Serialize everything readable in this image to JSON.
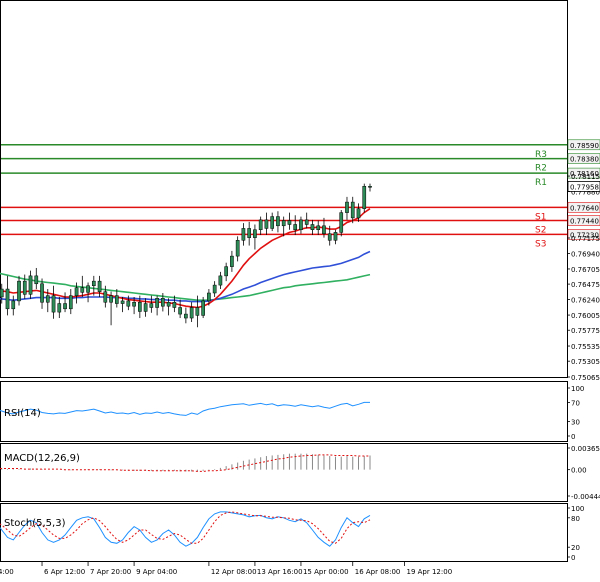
{
  "colors": {
    "up": "#2e8b57",
    "down": "#2e8b57",
    "support": "#e01010",
    "resistance": "#2a8a2a",
    "ma_fast": "#e01010",
    "ma_mid": "#3050d8",
    "ma_slow": "#30b060",
    "indicator": "#1e90ff",
    "signal": "#e01010",
    "histogram": "#888888",
    "price_tag": "#f2f2f2"
  },
  "chart_data": [
    {
      "type": "candlestick",
      "name": "price",
      "ylim": [
        0.75065,
        0.79816
      ],
      "y_ticks": [
        "0.78590",
        "0.78380",
        "0.78160",
        "0.78115",
        "0.77880",
        "0.77640",
        "0.77440",
        "0.77230",
        "0.77175",
        "0.76940",
        "0.76705",
        "0.76475",
        "0.76240",
        "0.76005",
        "0.75775",
        "0.75535",
        "0.75305",
        "0.75065"
      ],
      "y_tick_values": [
        0.7859,
        0.7838,
        0.7816,
        0.78115,
        0.7788,
        0.7764,
        0.7744,
        0.7723,
        0.77175,
        0.7694,
        0.76705,
        0.76475,
        0.7624,
        0.76005,
        0.75775,
        0.75535,
        0.75305,
        0.75065
      ],
      "x_ticks": [
        "4:00",
        "6 Apr 12:00",
        "7 Apr 20:00",
        "9 Apr 04:00",
        "12 Apr 08:00",
        "13 Apr 16:00",
        "15 Apr 00:00",
        "16 Apr 08:00",
        "19 Apr 12:00"
      ],
      "x_tick_index": [
        0,
        8,
        16,
        24,
        37,
        45,
        53,
        62,
        71
      ],
      "current_price": "0.77958",
      "current_price_value": 0.77958,
      "levels": [
        {
          "name": "R3",
          "value": 0.7859,
          "label": "0.78590",
          "kind": "resistance"
        },
        {
          "name": "R2",
          "value": 0.7838,
          "label": "0.78380",
          "kind": "resistance"
        },
        {
          "name": "R1",
          "value": 0.7816,
          "label": "0.78160",
          "kind": "resistance"
        },
        {
          "name": "S1",
          "value": 0.7764,
          "label": "0.77640",
          "kind": "support"
        },
        {
          "name": "S2",
          "value": 0.7744,
          "label": "0.77440",
          "kind": "support"
        },
        {
          "name": "S3",
          "value": 0.7723,
          "label": "0.77230",
          "kind": "support"
        }
      ],
      "candles": [
        [
          0.765,
          0.7656,
          0.762,
          0.7628
        ],
        [
          0.7628,
          0.7648,
          0.7618,
          0.764
        ],
        [
          0.764,
          0.766,
          0.76,
          0.761
        ],
        [
          0.761,
          0.763,
          0.76,
          0.7622
        ],
        [
          0.7622,
          0.766,
          0.7615,
          0.7652
        ],
        [
          0.7652,
          0.7662,
          0.7625,
          0.7632
        ],
        [
          0.7632,
          0.7668,
          0.7625,
          0.766
        ],
        [
          0.766,
          0.7672,
          0.764,
          0.7648
        ],
        [
          0.7648,
          0.7656,
          0.761,
          0.762
        ],
        [
          0.762,
          0.764,
          0.7605,
          0.763
        ],
        [
          0.763,
          0.7645,
          0.7595,
          0.7605
        ],
        [
          0.7605,
          0.7628,
          0.7596,
          0.7618
        ],
        [
          0.7618,
          0.7635,
          0.7605,
          0.761
        ],
        [
          0.761,
          0.764,
          0.7602,
          0.763
        ],
        [
          0.763,
          0.765,
          0.7618,
          0.7642
        ],
        [
          0.7642,
          0.766,
          0.7628,
          0.7635
        ],
        [
          0.7635,
          0.765,
          0.762,
          0.7645
        ],
        [
          0.7645,
          0.766,
          0.763,
          0.7652
        ],
        [
          0.7652,
          0.766,
          0.7628,
          0.7636
        ],
        [
          0.7636,
          0.7645,
          0.7612,
          0.762
        ],
        [
          0.762,
          0.7636,
          0.7585,
          0.763
        ],
        [
          0.763,
          0.764,
          0.7612,
          0.7618
        ],
        [
          0.7618,
          0.7628,
          0.7605,
          0.7622
        ],
        [
          0.7622,
          0.763,
          0.7608,
          0.7614
        ],
        [
          0.7614,
          0.7628,
          0.7602,
          0.762
        ],
        [
          0.762,
          0.763,
          0.7596,
          0.7606
        ],
        [
          0.7606,
          0.7626,
          0.7598,
          0.7618
        ],
        [
          0.7618,
          0.763,
          0.7604,
          0.7612
        ],
        [
          0.7612,
          0.763,
          0.76,
          0.7626
        ],
        [
          0.7626,
          0.7634,
          0.7606,
          0.7614
        ],
        [
          0.7614,
          0.7626,
          0.76,
          0.762
        ],
        [
          0.762,
          0.763,
          0.7605,
          0.7612
        ],
        [
          0.7612,
          0.7624,
          0.7596,
          0.7602
        ],
        [
          0.7602,
          0.7612,
          0.7588,
          0.7596
        ],
        [
          0.7596,
          0.762,
          0.759,
          0.7612
        ],
        [
          0.7612,
          0.763,
          0.7582,
          0.76
        ],
        [
          0.76,
          0.7628,
          0.7596,
          0.7622
        ],
        [
          0.7622,
          0.764,
          0.7615,
          0.7634
        ],
        [
          0.7634,
          0.7652,
          0.7628,
          0.7646
        ],
        [
          0.7646,
          0.7666,
          0.764,
          0.766
        ],
        [
          0.766,
          0.768,
          0.7652,
          0.7674
        ],
        [
          0.7674,
          0.7698,
          0.7666,
          0.769
        ],
        [
          0.769,
          0.772,
          0.7682,
          0.7714
        ],
        [
          0.7714,
          0.774,
          0.7706,
          0.7732
        ],
        [
          0.7732,
          0.7742,
          0.7706,
          0.7718
        ],
        [
          0.7718,
          0.7738,
          0.77,
          0.773
        ],
        [
          0.773,
          0.775,
          0.7722,
          0.7745
        ],
        [
          0.7745,
          0.7756,
          0.7722,
          0.7732
        ],
        [
          0.7732,
          0.7756,
          0.7728,
          0.775
        ],
        [
          0.775,
          0.7758,
          0.7726,
          0.7736
        ],
        [
          0.7736,
          0.775,
          0.772,
          0.7744
        ],
        [
          0.7744,
          0.7756,
          0.773,
          0.7738
        ],
        [
          0.7738,
          0.7752,
          0.7722,
          0.773
        ],
        [
          0.773,
          0.775,
          0.7724,
          0.7745
        ],
        [
          0.7745,
          0.7756,
          0.7732,
          0.7738
        ],
        [
          0.7738,
          0.7745,
          0.7722,
          0.773
        ],
        [
          0.773,
          0.7744,
          0.7722,
          0.7736
        ],
        [
          0.7736,
          0.7748,
          0.7718,
          0.7724
        ],
        [
          0.7724,
          0.7736,
          0.7706,
          0.7714
        ],
        [
          0.7714,
          0.773,
          0.7708,
          0.7726
        ],
        [
          0.7726,
          0.776,
          0.772,
          0.7756
        ],
        [
          0.7756,
          0.778,
          0.7745,
          0.7772
        ],
        [
          0.7772,
          0.778,
          0.774,
          0.7748
        ],
        [
          0.7748,
          0.777,
          0.7742,
          0.7762
        ],
        [
          0.7762,
          0.78,
          0.7756,
          0.7796
        ],
        [
          0.7796,
          0.78,
          0.7788,
          0.7796
        ]
      ],
      "ma_fast": [
        0.7638,
        0.7637,
        0.7636,
        0.7634,
        0.7635,
        0.7636,
        0.7637,
        0.7638,
        0.7636,
        0.7634,
        0.7632,
        0.763,
        0.7628,
        0.7628,
        0.7629,
        0.763,
        0.7632,
        0.7634,
        0.7634,
        0.7632,
        0.763,
        0.7628,
        0.7626,
        0.7624,
        0.7623,
        0.7622,
        0.7621,
        0.762,
        0.762,
        0.762,
        0.7619,
        0.7618,
        0.7616,
        0.7614,
        0.7613,
        0.7612,
        0.7614,
        0.7618,
        0.7624,
        0.7632,
        0.7642,
        0.7652,
        0.7664,
        0.7676,
        0.7686,
        0.7694,
        0.7702,
        0.7708,
        0.7714,
        0.7718,
        0.7722,
        0.7726,
        0.7728,
        0.7731,
        0.7733,
        0.7733,
        0.7734,
        0.7733,
        0.7731,
        0.7731,
        0.7735,
        0.7741,
        0.7744,
        0.7748,
        0.7756,
        0.7762
      ],
      "ma_mid": [
        0.7626,
        0.7625,
        0.7624,
        0.7623,
        0.7624,
        0.7625,
        0.7626,
        0.7627,
        0.7627,
        0.7627,
        0.7627,
        0.7626,
        0.7626,
        0.7626,
        0.7627,
        0.7627,
        0.7628,
        0.7628,
        0.7628,
        0.7628,
        0.7627,
        0.7627,
        0.7627,
        0.7626,
        0.7626,
        0.7625,
        0.7625,
        0.7624,
        0.7624,
        0.7624,
        0.7623,
        0.7623,
        0.7622,
        0.7622,
        0.7621,
        0.7621,
        0.7621,
        0.7622,
        0.7624,
        0.7626,
        0.7629,
        0.7632,
        0.7636,
        0.764,
        0.7643,
        0.7646,
        0.765,
        0.7653,
        0.7656,
        0.7659,
        0.7662,
        0.7664,
        0.7666,
        0.7668,
        0.767,
        0.7672,
        0.7673,
        0.7674,
        0.7675,
        0.7677,
        0.7679,
        0.7682,
        0.7685,
        0.7688,
        0.7693,
        0.7697
      ],
      "ma_slow": [
        0.7665,
        0.7663,
        0.7661,
        0.7659,
        0.7657,
        0.7655,
        0.7654,
        0.7652,
        0.7651,
        0.765,
        0.7649,
        0.7648,
        0.7647,
        0.7645,
        0.7644,
        0.7643,
        0.7642,
        0.7641,
        0.764,
        0.7639,
        0.7638,
        0.7637,
        0.7636,
        0.7635,
        0.7634,
        0.7633,
        0.7632,
        0.7631,
        0.763,
        0.7629,
        0.7628,
        0.7627,
        0.7626,
        0.7625,
        0.7624,
        0.7623,
        0.7623,
        0.7623,
        0.7624,
        0.7625,
        0.7626,
        0.7627,
        0.7628,
        0.7629,
        0.763,
        0.7632,
        0.7634,
        0.7636,
        0.7638,
        0.764,
        0.7642,
        0.7643,
        0.7645,
        0.7646,
        0.7647,
        0.7648,
        0.7649,
        0.765,
        0.7651,
        0.7652,
        0.7653,
        0.7654,
        0.7656,
        0.7658,
        0.766,
        0.7662
      ]
    },
    {
      "type": "line",
      "name": "rsi",
      "label": "RSI(14)",
      "ylim": [
        0,
        100
      ],
      "y_ticks": [
        "100",
        "70",
        "30",
        "0"
      ],
      "y_tick_values": [
        100,
        70,
        30,
        0
      ],
      "values": [
        55,
        52,
        48,
        46,
        50,
        53,
        56,
        54,
        49,
        47,
        46,
        48,
        47,
        50,
        53,
        52,
        54,
        56,
        52,
        48,
        50,
        47,
        48,
        46,
        49,
        45,
        48,
        47,
        50,
        47,
        49,
        46,
        44,
        43,
        48,
        45,
        52,
        56,
        58,
        61,
        63,
        65,
        66,
        67,
        64,
        66,
        68,
        65,
        67,
        63,
        65,
        64,
        62,
        65,
        63,
        61,
        63,
        60,
        58,
        62,
        66,
        68,
        63,
        66,
        70,
        70
      ]
    },
    {
      "type": "bar",
      "name": "macd",
      "label": "MACD(12,26,9)",
      "ylim": [
        -0.004448,
        0.003659
      ],
      "y_ticks": [
        "0.003659",
        "0.00",
        "-0.004448"
      ],
      "y_tick_values": [
        0.003659,
        0,
        -0.004448
      ],
      "values": [
        0.0002,
        0.0002,
        0.0001,
        0.0001,
        0.0001,
        0.0001,
        0.0002,
        0.0002,
        0.0001,
        0.0,
        0.0,
        0.0,
        -0.0001,
        -0.0001,
        0.0,
        0.0,
        0.0001,
        0.0001,
        0.0001,
        0.0,
        -0.0001,
        -0.0001,
        -0.0001,
        -0.0002,
        -0.0002,
        -0.0002,
        -0.0002,
        -0.0002,
        -0.0002,
        -0.0002,
        -0.0002,
        -0.0002,
        -0.0003,
        -0.0003,
        -0.0003,
        -0.0003,
        -0.0002,
        -0.0001,
        0.0001,
        0.0003,
        0.0006,
        0.0009,
        0.0012,
        0.0015,
        0.0017,
        0.0019,
        0.0021,
        0.0023,
        0.0024,
        0.0025,
        0.0026,
        0.0027,
        0.0027,
        0.0027,
        0.0027,
        0.0026,
        0.0025,
        0.0024,
        0.0023,
        0.0022,
        0.0022,
        0.0023,
        0.0022,
        0.0022,
        0.0023,
        0.0024
      ],
      "signal": [
        0.0002,
        0.0002,
        0.0002,
        0.0002,
        0.0002,
        0.0001,
        0.0001,
        0.0001,
        0.0001,
        0.0001,
        0.0001,
        0.0001,
        0.0,
        0.0,
        0.0,
        0.0,
        0.0,
        0.0,
        0.0,
        0.0,
        0.0,
        0.0,
        -0.0001,
        -0.0001,
        -0.0001,
        -0.0001,
        -0.0001,
        -0.0002,
        -0.0002,
        -0.0002,
        -0.0002,
        -0.0002,
        -0.0002,
        -0.0002,
        -0.0002,
        -0.0003,
        -0.0003,
        -0.0002,
        -0.0002,
        -0.0001,
        0.0,
        0.0002,
        0.0004,
        0.0006,
        0.0008,
        0.001,
        0.0012,
        0.0014,
        0.0016,
        0.0018,
        0.0019,
        0.0021,
        0.0022,
        0.0023,
        0.0024,
        0.0024,
        0.0025,
        0.0025,
        0.0025,
        0.0024,
        0.0024,
        0.0024,
        0.0024,
        0.0023,
        0.0023,
        0.0023
      ]
    },
    {
      "type": "line",
      "name": "stoch",
      "label": "Stoch(5,5,3)",
      "ylim": [
        0,
        100
      ],
      "y_ticks": [
        "100",
        "80",
        "20",
        "0"
      ],
      "y_tick_values": [
        100,
        80,
        20,
        0
      ],
      "values": [
        70,
        55,
        40,
        35,
        50,
        65,
        75,
        70,
        50,
        35,
        30,
        35,
        45,
        60,
        75,
        80,
        82,
        78,
        60,
        40,
        30,
        28,
        35,
        50,
        62,
        55,
        40,
        30,
        35,
        48,
        55,
        45,
        30,
        22,
        28,
        40,
        60,
        78,
        88,
        92,
        92,
        90,
        88,
        86,
        82,
        84,
        85,
        80,
        78,
        82,
        80,
        75,
        72,
        78,
        70,
        55,
        40,
        30,
        22,
        35,
        60,
        80,
        70,
        62,
        78,
        85
      ],
      "signal": [
        72,
        65,
        55,
        45,
        42,
        50,
        60,
        68,
        65,
        55,
        45,
        38,
        38,
        45,
        55,
        68,
        76,
        80,
        74,
        62,
        48,
        36,
        30,
        35,
        45,
        55,
        55,
        46,
        38,
        36,
        42,
        48,
        45,
        36,
        28,
        28,
        38,
        55,
        72,
        85,
        90,
        92,
        90,
        88,
        86,
        84,
        84,
        83,
        81,
        81,
        80,
        79,
        76,
        75,
        74,
        68,
        58,
        45,
        32,
        28,
        38,
        58,
        70,
        72,
        70,
        76
      ]
    }
  ]
}
